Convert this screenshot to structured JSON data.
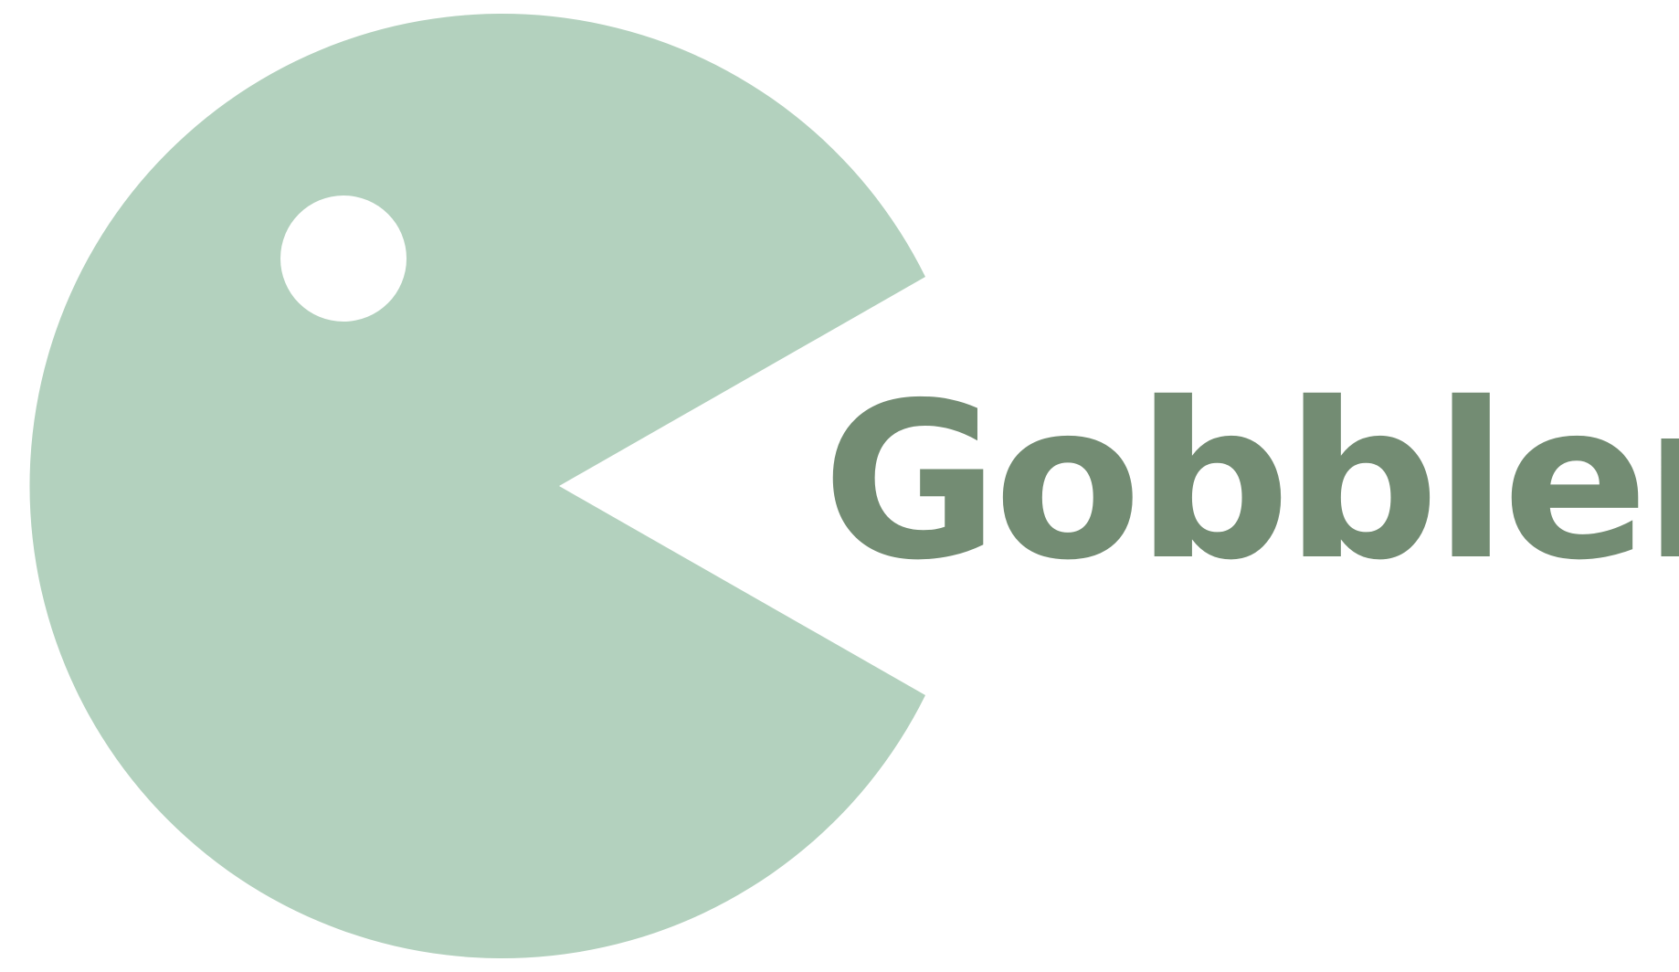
{
  "brand": {
    "name": "Gobbler",
    "icon": "pacman-icon",
    "colors": {
      "mark": "#b3d1be",
      "eye": "#ffffff",
      "wordmark": "#738c73",
      "background": "#ffffff"
    }
  }
}
